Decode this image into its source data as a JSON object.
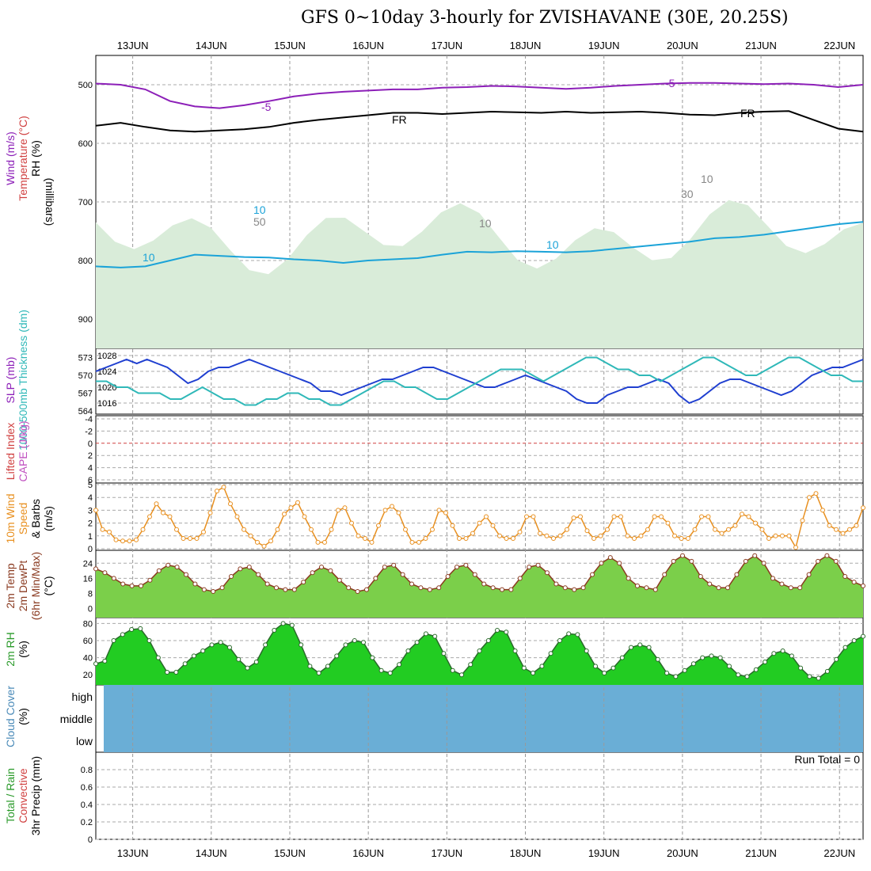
{
  "header": {
    "title": "GFS 0~10day 3-hourly for ZVISHAVANE (30E, 20.25S)"
  },
  "chart_data": {
    "type": "line",
    "dates": [
      "13JUN",
      "14JUN",
      "15JUN",
      "16JUN",
      "17JUN",
      "18JUN",
      "19JUN",
      "20JUN",
      "21JUN",
      "22JUN"
    ],
    "x_range_days": [
      12.53,
      22.3
    ],
    "colors": {
      "humidity_shade": "#d9ecd9",
      "dark_rh": "#a3b8a3",
      "contour_purple": "#8c1fb8",
      "contour_cyan": "#1ba3d8",
      "contour_orange": "#e8a030",
      "contour_magenta": "#d8207a",
      "slp_line": "#1f3fd0",
      "thickness_line": "#2fb8b8",
      "wind_line": "#e89020",
      "cloud_bg": "#6aaed6",
      "rh_green": "#22cc22"
    },
    "panels": [
      {
        "id": "upper_air",
        "labels": [
          "Wind (m/s)",
          "Temperature (°C)",
          "RH (%)"
        ],
        "ylabel": "(millibars)",
        "yticks": [
          500,
          600,
          700,
          800,
          900
        ],
        "ylim": [
          450,
          950
        ],
        "contour_labels": [
          "-5",
          "-5",
          "FR",
          "FR",
          "10",
          "10",
          "10",
          "50",
          "30",
          "10",
          "10"
        ],
        "series": [
          {
            "name": "-5",
            "color": "purple",
            "values": [
              498,
              500,
              508,
              528,
              537,
              540,
              535,
              528,
              520,
              515,
              512,
              510,
              508,
              508,
              505,
              504,
              502,
              503,
              505,
              507,
              505,
              502,
              500,
              498,
              497,
              497,
              498,
              499,
              498,
              500,
              504,
              500
            ]
          },
          {
            "name": "FR",
            "color": "black",
            "values": [
              570,
              565,
              572,
              578,
              580,
              578,
              576,
              572,
              565,
              560,
              556,
              552,
              548,
              548,
              550,
              548,
              546,
              547,
              548,
              546,
              548,
              547,
              546,
              548,
              551,
              552,
              548,
              546,
              545,
              560,
              575,
              580
            ]
          },
          {
            "name": "10",
            "color": "cyan",
            "values": [
              810,
              812,
              810,
              800,
              790,
              792,
              794,
              795,
              798,
              800,
              804,
              800,
              798,
              796,
              790,
              785,
              786,
              784,
              785,
              786,
              784,
              780,
              776,
              772,
              768,
              762,
              760,
              756,
              750,
              744,
              738,
              734
            ]
          }
        ]
      },
      {
        "id": "slp_thickness",
        "labels": [
          "SLP (mb)",
          "1000-500mb Thickness (dm)"
        ],
        "yticks_left": [
          564,
          567,
          570,
          573
        ],
        "yticks_right": [
          1016,
          1020,
          1024,
          1028
        ],
        "series": [
          {
            "name": "SLP",
            "axis": "right",
            "values": [
              1024,
              1025,
              1026,
              1027,
              1026,
              1027,
              1026,
              1025,
              1023,
              1021,
              1022,
              1024,
              1025,
              1025,
              1026,
              1027,
              1026,
              1025,
              1024,
              1023,
              1022,
              1021,
              1019,
              1019,
              1018,
              1019,
              1020,
              1021,
              1022,
              1022,
              1023,
              1024,
              1025,
              1025,
              1024,
              1023,
              1022,
              1021,
              1020,
              1020,
              1021,
              1022,
              1023,
              1022,
              1021,
              1020,
              1019,
              1017,
              1016,
              1016,
              1018,
              1019,
              1020,
              1020,
              1021,
              1022,
              1021,
              1018,
              1016,
              1017,
              1019,
              1021,
              1022,
              1022,
              1021,
              1020,
              1019,
              1018,
              1019,
              1021,
              1023,
              1024,
              1025,
              1025,
              1026,
              1027
            ]
          },
          {
            "name": "Thickness",
            "axis": "left",
            "values": [
              569,
              569,
              568,
              568,
              567,
              567,
              567,
              566,
              566,
              567,
              568,
              567,
              566,
              566,
              565,
              565,
              566,
              566,
              567,
              567,
              566,
              566,
              565,
              565,
              566,
              567,
              568,
              569,
              569,
              568,
              568,
              567,
              566,
              566,
              567,
              568,
              569,
              570,
              571,
              571,
              571,
              570,
              569,
              570,
              571,
              572,
              573,
              573,
              572,
              571,
              571,
              570,
              570,
              569,
              570,
              571,
              572,
              573,
              573,
              572,
              571,
              570,
              570,
              571,
              572,
              573,
              573,
              572,
              571,
              570,
              570,
              569,
              569
            ]
          }
        ]
      },
      {
        "id": "instability",
        "labels": [
          "Lifted Index",
          "CAPE (J/kg)"
        ],
        "yticks": [
          "-4",
          "-2",
          "0",
          "2",
          "4",
          "6"
        ],
        "values": []
      },
      {
        "id": "wind10m",
        "labels": [
          "10m Wind",
          "Speed",
          "& Barbs",
          "(m/s)"
        ],
        "yticks": [
          0,
          1,
          2,
          3,
          4,
          5
        ],
        "ylim": [
          0,
          5
        ],
        "values": [
          3.0,
          1.5,
          1.3,
          0.7,
          0.6,
          0.6,
          0.7,
          1.5,
          2.5,
          3.5,
          2.8,
          2.5,
          1.5,
          0.8,
          0.8,
          0.8,
          1.3,
          2.8,
          4.5,
          4.8,
          3.5,
          2.5,
          1.5,
          1.0,
          0.5,
          0.2,
          0.6,
          1.5,
          2.7,
          3.2,
          3.6,
          2.5,
          1.5,
          0.5,
          0.5,
          1.5,
          3.0,
          3.2,
          2.0,
          1.0,
          0.8,
          0.5,
          1.8,
          3.0,
          3.3,
          2.8,
          1.5,
          0.5,
          0.5,
          0.8,
          1.5,
          3.0,
          2.8,
          1.8,
          0.8,
          0.8,
          1.2,
          2.0,
          2.5,
          1.8,
          1.0,
          0.8,
          0.8,
          1.3,
          2.5,
          2.5,
          1.2,
          1.0,
          0.8,
          1.0,
          1.5,
          2.4,
          2.5,
          1.4,
          0.8,
          1.0,
          1.5,
          2.5,
          2.5,
          1.0,
          0.8,
          1.0,
          1.5,
          2.5,
          2.5,
          2.0,
          1.0,
          0.8,
          0.8,
          1.5,
          2.5,
          2.5,
          1.5,
          1.2,
          1.5,
          1.8,
          2.7,
          2.5,
          2.0,
          1.5,
          0.8,
          1.0,
          1.0,
          1.0,
          0.1,
          2.2,
          4.0,
          4.3,
          3.0,
          1.8,
          1.5,
          1.2,
          1.5,
          1.8,
          3.2
        ]
      },
      {
        "id": "temperature",
        "labels": [
          "2m Temp",
          "2m DewPt",
          "(6hr Min/Max)",
          "(°C)"
        ],
        "yticks": [
          0,
          8,
          16,
          24
        ],
        "ylim": [
          -4,
          30
        ],
        "values": [
          21,
          19,
          16,
          13,
          12,
          12,
          15,
          20,
          23,
          22,
          18,
          13,
          10,
          9,
          11,
          17,
          21,
          22,
          18,
          13,
          11,
          10,
          10,
          14,
          19,
          22,
          20,
          15,
          11,
          9,
          10,
          16,
          22,
          23,
          18,
          13,
          11,
          10,
          11,
          17,
          22,
          23,
          18,
          13,
          11,
          10,
          10,
          16,
          22,
          23,
          19,
          13,
          11,
          10,
          11,
          18,
          24,
          27,
          24,
          16,
          12,
          11,
          10,
          18,
          25,
          28,
          25,
          17,
          13,
          11,
          11,
          18,
          25,
          28,
          24,
          16,
          13,
          11,
          11,
          18,
          25,
          28,
          25,
          17,
          14,
          12
        ]
      },
      {
        "id": "rh2m",
        "labels": [
          "2m RH",
          "(%)"
        ],
        "yticks": [
          20,
          40,
          60,
          80
        ],
        "ylim": [
          10,
          85
        ],
        "values": [
          33,
          36,
          60,
          67,
          73,
          74,
          60,
          40,
          23,
          23,
          33,
          42,
          48,
          55,
          58,
          52,
          38,
          28,
          35,
          55,
          72,
          80,
          78,
          55,
          30,
          22,
          30,
          42,
          55,
          60,
          58,
          40,
          25,
          22,
          32,
          48,
          58,
          68,
          65,
          45,
          25,
          20,
          32,
          48,
          60,
          72,
          70,
          48,
          28,
          22,
          30,
          45,
          60,
          68,
          67,
          48,
          30,
          22,
          28,
          40,
          52,
          55,
          52,
          38,
          22,
          18,
          25,
          33,
          40,
          42,
          40,
          30,
          20,
          18,
          26,
          35,
          45,
          48,
          42,
          28,
          18,
          16,
          24,
          38,
          52,
          60,
          65
        ]
      },
      {
        "id": "cloud",
        "labels": [
          "Cloud Cover",
          "(%)"
        ],
        "yticks": [
          "high",
          "middle",
          "low"
        ],
        "values": []
      },
      {
        "id": "precip",
        "labels": [
          "Total / Rain",
          "Convective",
          "3hr Precip (mm)"
        ],
        "yticks": [
          "0",
          "0.2",
          "0.4",
          "0.6",
          "0.8"
        ],
        "ylim": [
          0,
          1.0
        ],
        "values": [],
        "annotation": "Run Total = 0"
      }
    ]
  }
}
